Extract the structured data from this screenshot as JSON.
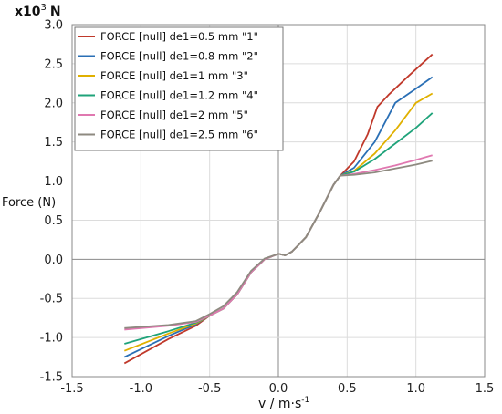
{
  "chart_data": {
    "type": "line",
    "scale_label": "x10",
    "scale_exponent": "3",
    "unit": "N",
    "ylabel": "Force (N)",
    "xlabel": "v / m·s",
    "xlabel_exponent": "-1",
    "xlim": [
      -1.5,
      1.5
    ],
    "ylim": [
      -1.5,
      3.0
    ],
    "xticks": [
      "-1.5",
      "-1.0",
      "-0.5",
      "0.0",
      "0.5",
      "1.0",
      "1.5"
    ],
    "xtick_values": [
      -1.5,
      -1.0,
      -0.5,
      0.0,
      0.5,
      1.0,
      1.5
    ],
    "yticks": [
      "-1.5",
      "-1.0",
      "-0.5",
      "0.0",
      "0.5",
      "1.0",
      "1.5",
      "2.0",
      "2.5",
      "3.0"
    ],
    "ytick_values": [
      -1.5,
      -1.0,
      -0.5,
      0.0,
      0.5,
      1.0,
      1.5,
      2.0,
      2.5,
      3.0
    ],
    "grid": true,
    "legend_position": "top-left",
    "series": [
      {
        "name": "FORCE [null] de1=0.5 mm \"1\"",
        "color": "#c0392b",
        "x": [
          -1.12,
          -0.8,
          -0.6,
          -0.5,
          -0.4,
          -0.3,
          -0.2,
          -0.1,
          0.0,
          0.05,
          0.1,
          0.2,
          0.3,
          0.4,
          0.45,
          0.55,
          0.65,
          0.72,
          0.8,
          0.95,
          1.12
        ],
        "y": [
          -1.33,
          -1.02,
          -0.85,
          -0.72,
          -0.63,
          -0.45,
          -0.17,
          0.0,
          0.07,
          0.05,
          0.1,
          0.28,
          0.6,
          0.95,
          1.07,
          1.25,
          1.6,
          1.95,
          2.1,
          2.35,
          2.62
        ]
      },
      {
        "name": "FORCE [null] de1=0.8 mm \"2\"",
        "color": "#2a6fb5",
        "x": [
          -1.12,
          -0.8,
          -0.6,
          -0.5,
          -0.4,
          -0.3,
          -0.2,
          -0.1,
          0.0,
          0.05,
          0.1,
          0.2,
          0.3,
          0.4,
          0.45,
          0.55,
          0.7,
          0.85,
          1.0,
          1.12
        ],
        "y": [
          -1.25,
          -0.98,
          -0.83,
          -0.72,
          -0.63,
          -0.45,
          -0.17,
          0.0,
          0.07,
          0.05,
          0.1,
          0.28,
          0.6,
          0.95,
          1.07,
          1.17,
          1.5,
          2.0,
          2.18,
          2.33
        ]
      },
      {
        "name": "FORCE [null] de1=1 mm \"3\"",
        "color": "#e0b000",
        "x": [
          -1.12,
          -0.8,
          -0.6,
          -0.5,
          -0.4,
          -0.3,
          -0.2,
          -0.1,
          0.0,
          0.05,
          0.1,
          0.2,
          0.3,
          0.4,
          0.45,
          0.55,
          0.7,
          0.85,
          1.0,
          1.12
        ],
        "y": [
          -1.17,
          -0.95,
          -0.82,
          -0.72,
          -0.63,
          -0.45,
          -0.17,
          0.0,
          0.07,
          0.05,
          0.1,
          0.28,
          0.6,
          0.95,
          1.07,
          1.13,
          1.35,
          1.65,
          2.0,
          2.12
        ]
      },
      {
        "name": "FORCE [null] de1=1.2 mm \"4\"",
        "color": "#1fa37a",
        "x": [
          -1.12,
          -0.8,
          -0.6,
          -0.5,
          -0.4,
          -0.3,
          -0.2,
          -0.1,
          0.0,
          0.05,
          0.1,
          0.2,
          0.3,
          0.4,
          0.45,
          0.55,
          0.7,
          0.85,
          1.0,
          1.12
        ],
        "y": [
          -1.08,
          -0.92,
          -0.81,
          -0.72,
          -0.63,
          -0.45,
          -0.17,
          0.0,
          0.07,
          0.05,
          0.1,
          0.28,
          0.6,
          0.95,
          1.07,
          1.12,
          1.28,
          1.48,
          1.68,
          1.87
        ]
      },
      {
        "name": "FORCE [null] de1=2 mm \"5\"",
        "color": "#e078b0",
        "x": [
          -1.12,
          -0.8,
          -0.6,
          -0.5,
          -0.4,
          -0.3,
          -0.2,
          -0.1,
          0.0,
          0.05,
          0.1,
          0.2,
          0.3,
          0.4,
          0.45,
          0.55,
          0.7,
          0.85,
          1.0,
          1.12
        ],
        "y": [
          -0.9,
          -0.85,
          -0.8,
          -0.72,
          -0.63,
          -0.45,
          -0.17,
          0.0,
          0.07,
          0.05,
          0.1,
          0.28,
          0.6,
          0.95,
          1.07,
          1.09,
          1.14,
          1.2,
          1.27,
          1.33
        ]
      },
      {
        "name": "FORCE [null] de1=2.5 mm \"6\"",
        "color": "#8e8a80",
        "x": [
          -1.12,
          -0.8,
          -0.6,
          -0.5,
          -0.4,
          -0.3,
          -0.2,
          -0.1,
          0.0,
          0.05,
          0.1,
          0.2,
          0.3,
          0.4,
          0.45,
          0.55,
          0.7,
          0.85,
          1.0,
          1.12
        ],
        "y": [
          -0.88,
          -0.84,
          -0.79,
          -0.7,
          -0.6,
          -0.42,
          -0.15,
          0.01,
          0.07,
          0.05,
          0.1,
          0.28,
          0.6,
          0.95,
          1.07,
          1.08,
          1.11,
          1.16,
          1.21,
          1.26
        ]
      }
    ]
  }
}
